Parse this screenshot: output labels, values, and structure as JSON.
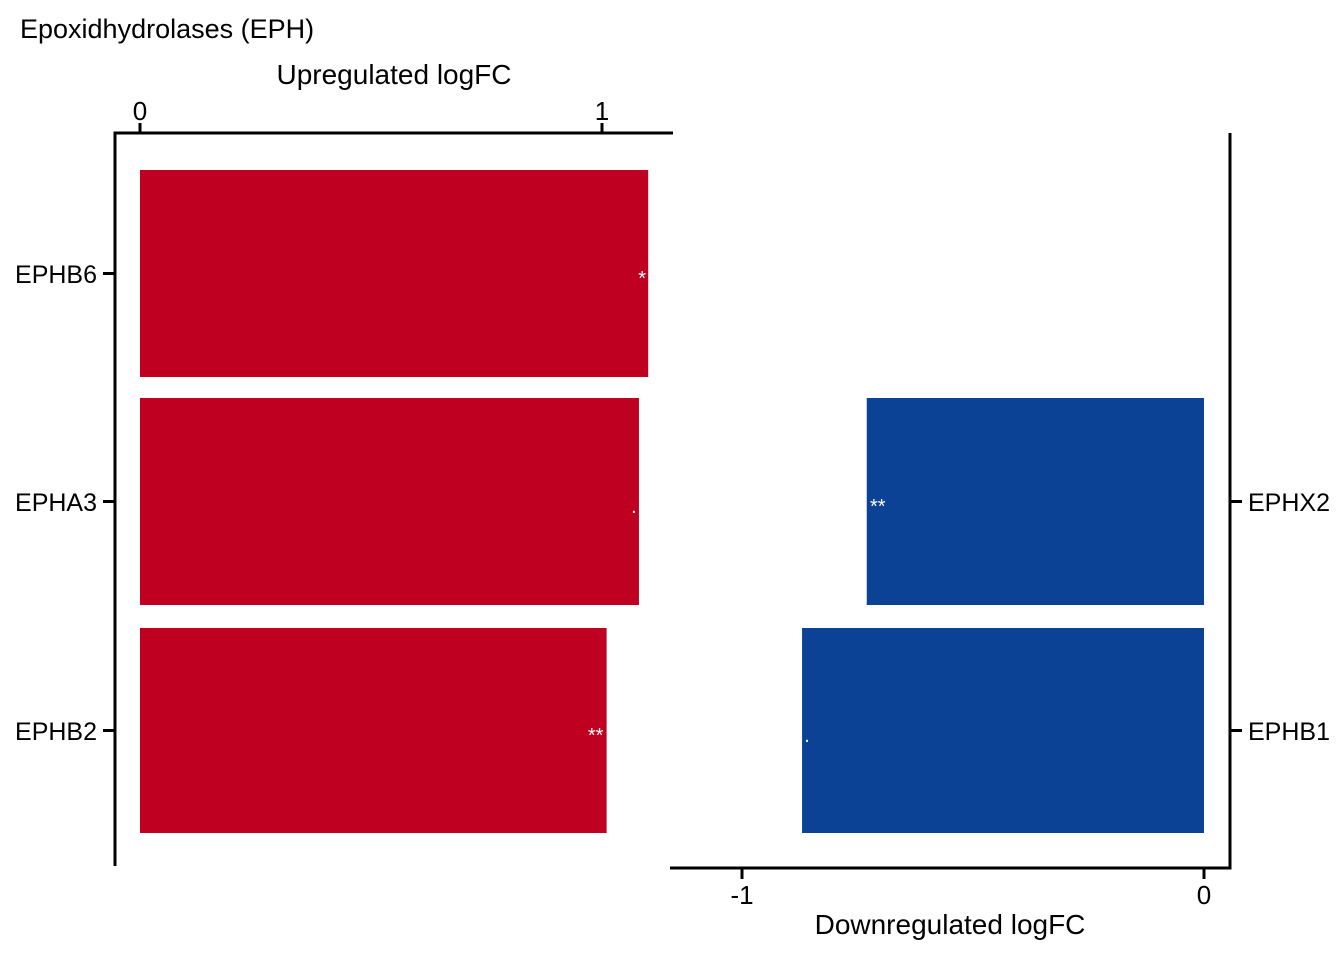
{
  "title": "Epoxidhydrolases (EPH)",
  "chart_data": {
    "type": "bar",
    "orientation": "horizontal",
    "value_unit": "logFC",
    "gene_rows": [
      "EPHB6 / (none)",
      "EPHA3 / EPHX2",
      "EPHB2 / EPHB1"
    ],
    "significance_marker_color": "#FFFFFF",
    "axis_color": "#000000",
    "background_color": "#FFFFFF",
    "legend": "none",
    "grid": "off",
    "panels": [
      {
        "id": "upregulated",
        "axis_title": "Upregulated logFC",
        "axis_side": "top",
        "gene_label_side": "left",
        "bar_color": "#C00021",
        "bar_direction": "positive",
        "xlim": [
          -0.054,
          1.154
        ],
        "ticks": [
          0,
          1
        ],
        "tick_labels": [
          "0",
          "1"
        ],
        "bars": [
          {
            "gene": "EPHB6",
            "logFC": 1.1,
            "significance": "*",
            "row": 0
          },
          {
            "gene": "EPHA3",
            "logFC": 1.08,
            "significance": ".",
            "row": 1
          },
          {
            "gene": "EPHB2",
            "logFC": 1.01,
            "significance": "**",
            "row": 2
          }
        ]
      },
      {
        "id": "downregulated",
        "axis_title": "Downregulated logFC",
        "axis_side": "bottom",
        "gene_label_side": "right",
        "bar_color": "#0B4295",
        "bar_direction": "negative",
        "xlim": [
          -1.156,
          0.056
        ],
        "ticks": [
          -1,
          0
        ],
        "tick_labels": [
          "-1",
          "0"
        ],
        "bars": [
          {
            "gene": "EPHX2",
            "logFC": -0.73,
            "significance": "**",
            "row": 1
          },
          {
            "gene": "EPHB1",
            "logFC": -0.87,
            "significance": ".",
            "row": 2
          }
        ]
      }
    ]
  }
}
